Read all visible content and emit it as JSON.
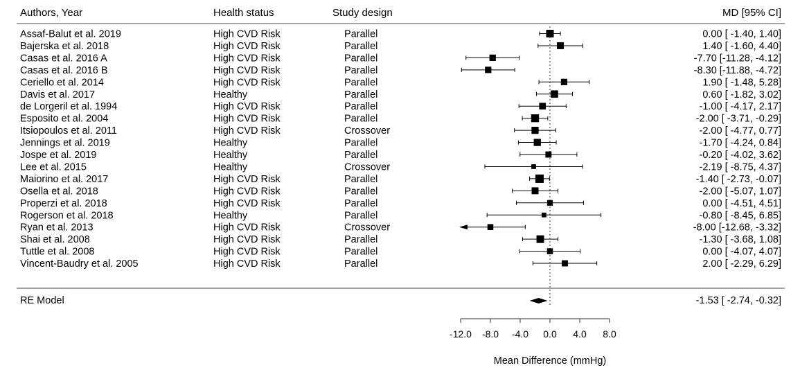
{
  "chart_data": {
    "type": "forest",
    "columns": {
      "authors": "Authors, Year",
      "health": "Health status",
      "design": "Study design",
      "effect": "MD [95% CI]"
    },
    "studies": [
      {
        "author": "Assaf-Balut et al. 2019",
        "health": "High CVD Risk",
        "design": "Parallel",
        "md": 0.0,
        "lo": -1.4,
        "hi": 1.4,
        "ci_text": "0.00 [ -1.40,  1.40]",
        "weight": 1.0
      },
      {
        "author": "Bajerska et al. 2018",
        "health": "High CVD Risk",
        "design": "Parallel",
        "md": 1.4,
        "lo": -1.6,
        "hi": 4.4,
        "ci_text": "1.40 [ -1.60,  4.40]",
        "weight": 0.85
      },
      {
        "author": "Casas et al. 2016 A",
        "health": "High CVD Risk",
        "design": "Parallel",
        "md": -7.7,
        "lo": -11.28,
        "hi": -4.12,
        "ci_text": "-7.70 [-11.28, -4.12]",
        "weight": 0.75
      },
      {
        "author": "Casas et al. 2016 B",
        "health": "High CVD Risk",
        "design": "Parallel",
        "md": -8.3,
        "lo": -11.88,
        "hi": -4.72,
        "ci_text": "-8.30 [-11.88, -4.72]",
        "weight": 0.75
      },
      {
        "author": "Ceriello et al. 2014",
        "health": "High CVD Risk",
        "design": "Parallel",
        "md": 1.9,
        "lo": -1.48,
        "hi": 5.28,
        "ci_text": "1.90 [ -1.48,  5.28]",
        "weight": 0.75
      },
      {
        "author": "Davis et al. 2017",
        "health": "Healthy",
        "design": "Parallel",
        "md": 0.6,
        "lo": -1.82,
        "hi": 3.02,
        "ci_text": "0.60 [ -1.82,  3.02]",
        "weight": 0.95
      },
      {
        "author": "de Lorgeril et al. 1994",
        "health": "High CVD Risk",
        "design": "Parallel",
        "md": -1.0,
        "lo": -4.17,
        "hi": 2.17,
        "ci_text": "-1.00 [ -4.17,  2.17]",
        "weight": 0.8
      },
      {
        "author": "Esposito et al. 2004",
        "health": "High CVD Risk",
        "design": "Parallel",
        "md": -2.0,
        "lo": -3.71,
        "hi": -0.29,
        "ci_text": "-2.00 [ -3.71, -0.29]",
        "weight": 1.05
      },
      {
        "author": "Itsiopoulos et al. 2011",
        "health": "High CVD Risk",
        "design": "Crossover",
        "md": -2.0,
        "lo": -4.77,
        "hi": 0.77,
        "ci_text": "-2.00 [ -4.77,  0.77]",
        "weight": 0.9
      },
      {
        "author": "Jennings et al. 2019",
        "health": "Healthy",
        "design": "Parallel",
        "md": -1.7,
        "lo": -4.24,
        "hi": 0.84,
        "ci_text": "-1.70 [ -4.24,  0.84]",
        "weight": 0.9
      },
      {
        "author": "Jospe et al. 2019",
        "health": "Healthy",
        "design": "Parallel",
        "md": -0.2,
        "lo": -4.02,
        "hi": 3.62,
        "ci_text": "-0.20 [ -4.02,  3.62]",
        "weight": 0.7
      },
      {
        "author": "Lee et al. 2015",
        "health": "Healthy",
        "design": "Crossover",
        "md": -2.19,
        "lo": -8.75,
        "hi": 4.37,
        "ci_text": "-2.19 [ -8.75,  4.37]",
        "weight": 0.4
      },
      {
        "author": "Maiorino et al. 2017",
        "health": "High CVD Risk",
        "design": "Parallel",
        "md": -1.4,
        "lo": -2.73,
        "hi": -0.07,
        "ci_text": "-1.40 [ -2.73, -0.07]",
        "weight": 1.15
      },
      {
        "author": "Osella et al. 2018",
        "health": "High CVD Risk",
        "design": "Parallel",
        "md": -2.0,
        "lo": -5.07,
        "hi": 1.07,
        "ci_text": "-2.00 [ -5.07,  1.07]",
        "weight": 0.85
      },
      {
        "author": "Properzi et al. 2018",
        "health": "High CVD Risk",
        "design": "Parallel",
        "md": 0.0,
        "lo": -4.51,
        "hi": 4.51,
        "ci_text": "0.00 [ -4.51,  4.51]",
        "weight": 0.6
      },
      {
        "author": "Rogerson et al. 2018",
        "health": "Healthy",
        "design": "Parallel",
        "md": -0.8,
        "lo": -8.45,
        "hi": 6.85,
        "ci_text": "-0.80 [ -8.45,  6.85]",
        "weight": 0.4
      },
      {
        "author": "Ryan et al. 2013",
        "health": "High CVD Risk",
        "design": "Crossover",
        "md": -8.0,
        "lo": -12.68,
        "hi": -3.32,
        "ci_text": "-8.00 [-12.68, -3.32]",
        "weight": 0.65,
        "arrow_left": true
      },
      {
        "author": "Shai et al. 2008",
        "health": "High CVD Risk",
        "design": "Parallel",
        "md": -1.3,
        "lo": -3.68,
        "hi": 1.08,
        "ci_text": "-1.30 [ -3.68,  1.08]",
        "weight": 1.0
      },
      {
        "author": "Tuttle et al. 2008",
        "health": "High CVD Risk",
        "design": "Parallel",
        "md": 0.0,
        "lo": -4.07,
        "hi": 4.07,
        "ci_text": "0.00 [ -4.07,  4.07]",
        "weight": 0.65
      },
      {
        "author": "Vincent-Baudry et al. 2005",
        "health": "High CVD Risk",
        "design": "Parallel",
        "md": 2.0,
        "lo": -2.29,
        "hi": 6.29,
        "ci_text": "2.00 [ -2.29,  6.29]",
        "weight": 0.7
      }
    ],
    "summary": {
      "label": "RE Model",
      "md": -1.53,
      "lo": -2.74,
      "hi": -0.32,
      "ci_text": "-1.53 [ -2.74, -0.32]"
    },
    "x_ticks": [
      -12.0,
      -8.0,
      -4.0,
      0.0,
      4.0,
      8.0
    ],
    "x_tick_labels": [
      "-12.0",
      "-8.0",
      "-4.0",
      "0.0",
      "4.0",
      "8.0"
    ],
    "xlim": [
      -12.0,
      10.0
    ],
    "reference_line": 0,
    "xlabel": "Mean Difference (mmHg)"
  }
}
